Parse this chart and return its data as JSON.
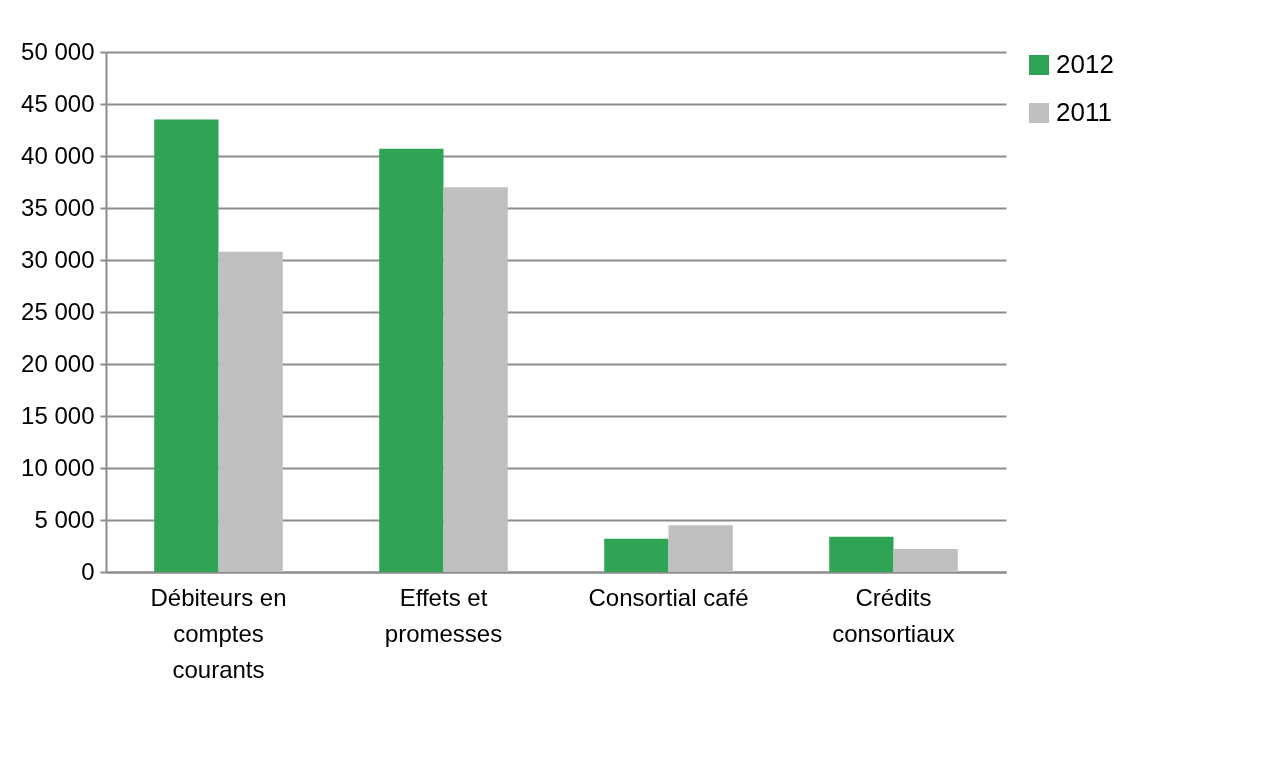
{
  "chart_data": {
    "type": "bar",
    "categories": [
      "Débiteurs en comptes courants",
      "Effets et promesses",
      "Consortial café",
      "Crédits consortiaux"
    ],
    "series": [
      {
        "name": "2012",
        "color": "#2ea454",
        "values": [
          43500,
          40700,
          3200,
          3400
        ]
      },
      {
        "name": "2011",
        "color": "#bfbfbf",
        "values": [
          30800,
          37000,
          4500,
          2200
        ]
      }
    ],
    "ylim": [
      0,
      50000
    ],
    "yticks": [
      {
        "value": 0,
        "label": "0"
      },
      {
        "value": 5000,
        "label": "5 000"
      },
      {
        "value": 10000,
        "label": "10 000"
      },
      {
        "value": 15000,
        "label": "15 000"
      },
      {
        "value": 20000,
        "label": "20 000"
      },
      {
        "value": 25000,
        "label": "25 000"
      },
      {
        "value": 30000,
        "label": "30 000"
      },
      {
        "value": 35000,
        "label": "35 000"
      },
      {
        "value": 40000,
        "label": "40 000"
      },
      {
        "value": 45000,
        "label": "45 000"
      },
      {
        "value": 50000,
        "label": "50 000"
      }
    ],
    "grid": "y",
    "legend": "right"
  }
}
